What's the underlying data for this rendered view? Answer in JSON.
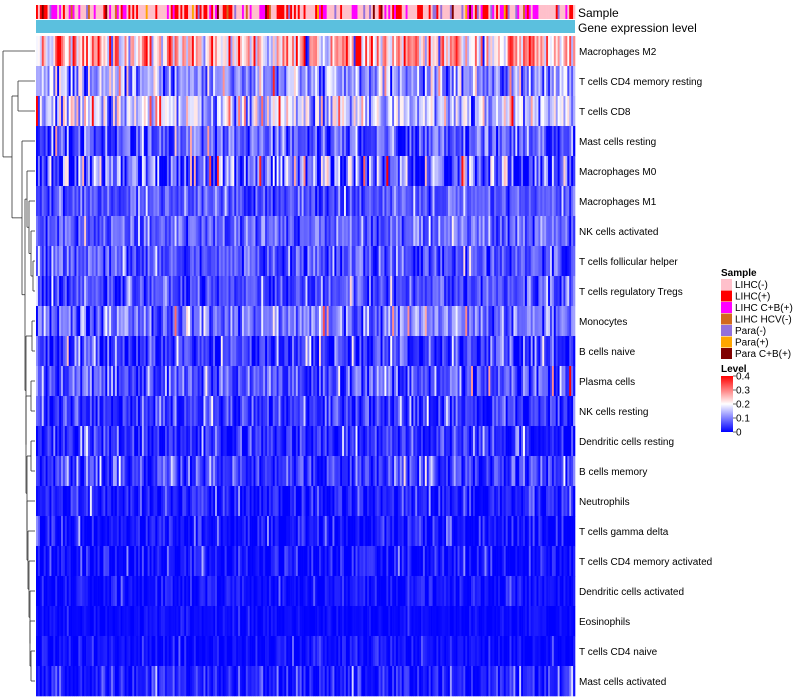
{
  "chart_data": {
    "type": "heatmap",
    "title": "",
    "annotation_tracks": [
      "Sample",
      "Gene expression level"
    ],
    "rows": [
      {
        "label": "Macrophages M2",
        "mean": 0.24,
        "spread": 0.08
      },
      {
        "label": "T cells CD4 memory resting",
        "mean": 0.11,
        "spread": 0.06
      },
      {
        "label": "T cells CD8",
        "mean": 0.16,
        "spread": 0.07
      },
      {
        "label": "Mast cells resting",
        "mean": 0.06,
        "spread": 0.05
      },
      {
        "label": "Macrophages M0",
        "mean": 0.07,
        "spread": 0.09
      },
      {
        "label": "Macrophages M1",
        "mean": 0.06,
        "spread": 0.03
      },
      {
        "label": "NK cells activated",
        "mean": 0.07,
        "spread": 0.04
      },
      {
        "label": "T cells follicular helper",
        "mean": 0.06,
        "spread": 0.04
      },
      {
        "label": "T cells regulatory  Tregs",
        "mean": 0.06,
        "spread": 0.04
      },
      {
        "label": "Monocytes",
        "mean": 0.09,
        "spread": 0.05
      },
      {
        "label": "B cells naive",
        "mean": 0.04,
        "spread": 0.04
      },
      {
        "label": "Plasma cells",
        "mean": 0.06,
        "spread": 0.05
      },
      {
        "label": "NK cells resting",
        "mean": 0.04,
        "spread": 0.04
      },
      {
        "label": "Dendritic cells resting",
        "mean": 0.03,
        "spread": 0.04
      },
      {
        "label": "B cells memory",
        "mean": 0.04,
        "spread": 0.04
      },
      {
        "label": "Neutrophils",
        "mean": 0.02,
        "spread": 0.03
      },
      {
        "label": "T cells gamma delta",
        "mean": 0.01,
        "spread": 0.03
      },
      {
        "label": "T cells CD4 memory activated",
        "mean": 0.01,
        "spread": 0.03
      },
      {
        "label": "Dendritic cells activated",
        "mean": 0.01,
        "spread": 0.02
      },
      {
        "label": "Eosinophils",
        "mean": 0.005,
        "spread": 0.01
      },
      {
        "label": "T cells CD4 naive",
        "mean": 0.01,
        "spread": 0.02
      },
      {
        "label": "Mast cells activated",
        "mean": 0.02,
        "spread": 0.03
      }
    ],
    "sample_count": 280,
    "sample_legend": {
      "title": "Sample",
      "entries": [
        {
          "label": "LIHC(-)",
          "color": "#ffc0cb"
        },
        {
          "label": "LIHC(+)",
          "color": "#ff0000"
        },
        {
          "label": "LIHC C+B(+)",
          "color": "#ff00ff"
        },
        {
          "label": "LIHC HCV(-)",
          "color": "#d2691e"
        },
        {
          "label": "Para(-)",
          "color": "#9370db"
        },
        {
          "label": "Para(+)",
          "color": "#ffa500"
        },
        {
          "label": "Para C+B(+)",
          "color": "#800000"
        }
      ]
    },
    "level_legend": {
      "title": "Level",
      "min": 0,
      "max": 0.4,
      "ticks": [
        {
          "value": 0.4,
          "label": "0.4"
        },
        {
          "value": 0.3,
          "label": "0.3"
        },
        {
          "value": 0.2,
          "label": "0.2"
        },
        {
          "value": 0.1,
          "label": "0.1"
        },
        {
          "value": 0,
          "label": "0"
        }
      ],
      "color_low": "#0000ff",
      "color_mid": "#ffffff",
      "color_high": "#ff0000",
      "mid_value": 0.2
    },
    "expression_track_color": "#5bc0de"
  }
}
